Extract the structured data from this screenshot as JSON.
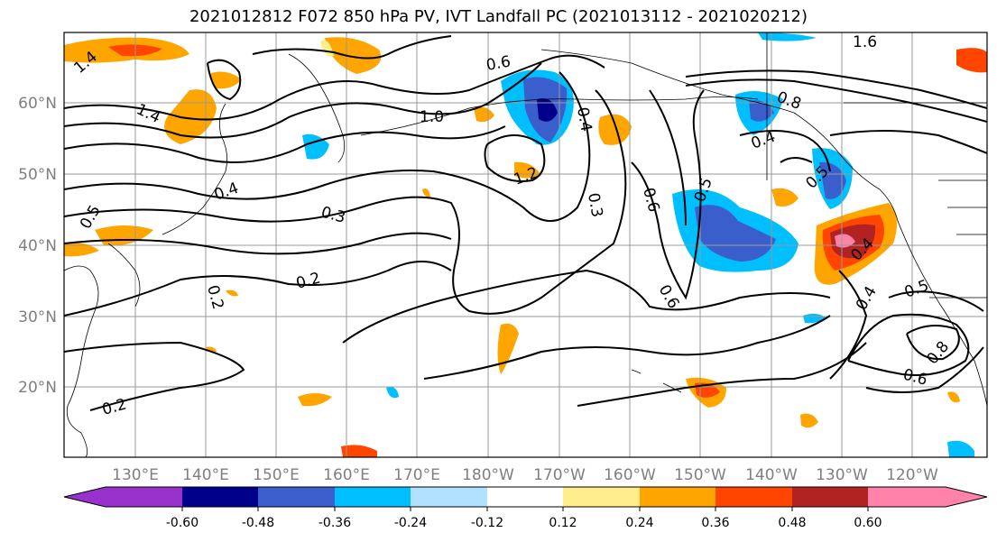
{
  "title": "2021012812 F072 850 hPa PV, IVT Landfall PC (2021013112 - 2021020212)",
  "longitude_labels": [
    "130°E",
    "140°E",
    "150°E",
    "160°E",
    "170°E",
    "180°W",
    "170°W",
    "160°W",
    "150°W",
    "140°W",
    "130°W",
    "120°W"
  ],
  "latitude_labels": [
    "60°N",
    "50°N",
    "40°N",
    "30°N",
    "20°N"
  ],
  "colorbar": {
    "tick_labels": [
      "-0.60",
      "-0.48",
      "-0.36",
      "-0.24",
      "-0.12",
      "0.12",
      "0.24",
      "0.36",
      "0.48",
      "0.60"
    ],
    "colors": [
      "#9932cc",
      "#00008b",
      "#3a5fcd",
      "#00bfff",
      "#b0e2ff",
      "#ffffff",
      "#ffec8b",
      "#ffa500",
      "#ff4500",
      "#b22222",
      "#ff82ab"
    ],
    "extend": "both"
  },
  "contour_labels": [
    "1.4",
    "1.4",
    "1.0",
    "1.2",
    "0.3",
    "0.2",
    "0.2",
    "0.2",
    "0.4",
    "0.5",
    "0.6",
    "0.5",
    "0.4",
    "0.6",
    "0.6",
    "0.4",
    "0.5",
    "0.8",
    "0.4",
    "0.5",
    "0.3",
    "0.8",
    "0.6",
    "1.6",
    "0.4"
  ],
  "colors": {
    "contour": "#000000",
    "grid": "#999999",
    "coast": "#000000"
  }
}
